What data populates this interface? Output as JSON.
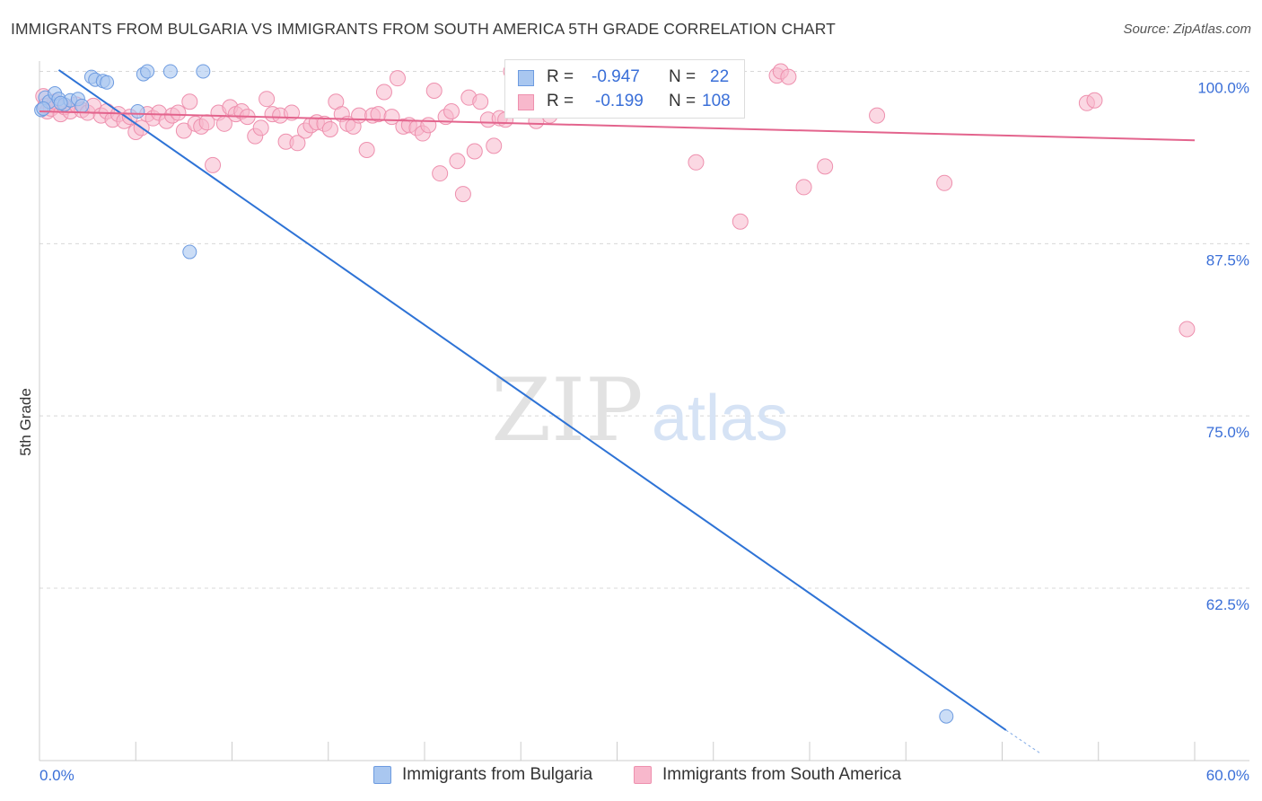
{
  "header": {
    "title": "IMMIGRANTS FROM BULGARIA VS IMMIGRANTS FROM SOUTH AMERICA 5TH GRADE CORRELATION CHART",
    "source": "Source: ZipAtlas.com"
  },
  "watermark": {
    "zip": "ZIP",
    "atlas": "atlas"
  },
  "legend": {
    "rows": [
      {
        "r_label": "R =",
        "r_value": "-0.947",
        "n_label": "N =",
        "n_value": "22"
      },
      {
        "r_label": "R =",
        "r_value": "-0.199",
        "n_label": "N =",
        "n_value": "108"
      }
    ]
  },
  "colors": {
    "bulgaria_fill": "#a9c7f0",
    "bulgaria_stroke": "#6d9be0",
    "bulgaria_line": "#2e73d6",
    "south_america_fill": "#f8b8cc",
    "south_america_stroke": "#ee90ae",
    "south_america_line": "#e3648d",
    "tick_label": "#3a6fd8",
    "grid": "#d8d8d8"
  },
  "chart_data": {
    "type": "scatter",
    "title": "IMMIGRANTS FROM BULGARIA VS IMMIGRANTS FROM SOUTH AMERICA 5TH GRADE CORRELATION CHART",
    "xlabel": "",
    "ylabel": "5th Grade",
    "xlim": [
      0,
      60
    ],
    "ylim": [
      50.5,
      101.2
    ],
    "x_tick_labels": [
      "0.0%",
      "60.0%"
    ],
    "y_ticks": [
      62.5,
      75.0,
      87.5,
      100.0
    ],
    "y_tick_labels": [
      "62.5%",
      "75.0%",
      "87.5%",
      "100.0%"
    ],
    "grid": true,
    "legend_position": "bottom",
    "series": [
      {
        "name": "Immigrants from Bulgaria",
        "R": -0.947,
        "N": 22,
        "trend": {
          "x": [
            1.0,
            50.2
          ],
          "y": [
            100.1,
            52.2
          ],
          "dashed_to": [
            52.0,
            50.5
          ]
        },
        "points": [
          [
            0.1,
            97.2
          ],
          [
            0.3,
            98.1
          ],
          [
            0.5,
            97.8
          ],
          [
            0.8,
            98.4
          ],
          [
            1.0,
            98.0
          ],
          [
            1.3,
            97.6
          ],
          [
            1.6,
            97.9
          ],
          [
            2.0,
            98.0
          ],
          [
            2.2,
            97.5
          ],
          [
            2.7,
            99.6
          ],
          [
            2.9,
            99.4
          ],
          [
            3.3,
            99.3
          ],
          [
            3.5,
            99.2
          ],
          [
            5.1,
            97.1
          ],
          [
            5.4,
            99.8
          ],
          [
            5.6,
            100.0
          ],
          [
            6.8,
            100.0
          ],
          [
            8.5,
            100.0
          ],
          [
            7.8,
            86.9
          ],
          [
            47.1,
            53.2
          ],
          [
            0.2,
            97.3
          ],
          [
            1.1,
            97.7
          ]
        ]
      },
      {
        "name": "Immigrants from South America",
        "R": -0.199,
        "N": 108,
        "trend": {
          "x": [
            0.0,
            60.0
          ],
          "y": [
            97.1,
            95.0
          ]
        },
        "points": [
          [
            0.2,
            98.2
          ],
          [
            0.3,
            97.5
          ],
          [
            0.4,
            97.1
          ],
          [
            0.6,
            97.3
          ],
          [
            0.8,
            97.8
          ],
          [
            1.1,
            96.9
          ],
          [
            1.3,
            97.4
          ],
          [
            1.6,
            97.1
          ],
          [
            1.9,
            97.6
          ],
          [
            2.2,
            97.2
          ],
          [
            2.5,
            97.0
          ],
          [
            2.8,
            97.5
          ],
          [
            3.2,
            96.8
          ],
          [
            3.5,
            97.1
          ],
          [
            3.8,
            96.5
          ],
          [
            4.1,
            96.9
          ],
          [
            4.4,
            96.4
          ],
          [
            4.7,
            96.7
          ],
          [
            5.0,
            95.6
          ],
          [
            5.3,
            95.9
          ],
          [
            5.6,
            96.9
          ],
          [
            5.9,
            96.6
          ],
          [
            6.2,
            97.0
          ],
          [
            6.6,
            96.4
          ],
          [
            6.9,
            96.8
          ],
          [
            7.2,
            97.0
          ],
          [
            7.5,
            95.7
          ],
          [
            7.8,
            97.8
          ],
          [
            8.1,
            96.2
          ],
          [
            8.4,
            96.0
          ],
          [
            8.7,
            96.3
          ],
          [
            9.0,
            93.2
          ],
          [
            9.3,
            97.0
          ],
          [
            9.6,
            96.2
          ],
          [
            9.9,
            97.4
          ],
          [
            10.2,
            96.9
          ],
          [
            10.5,
            97.1
          ],
          [
            10.8,
            96.7
          ],
          [
            11.2,
            95.3
          ],
          [
            11.5,
            95.9
          ],
          [
            11.8,
            98.0
          ],
          [
            12.1,
            96.9
          ],
          [
            12.5,
            96.8
          ],
          [
            12.8,
            94.9
          ],
          [
            13.1,
            97.0
          ],
          [
            13.4,
            94.8
          ],
          [
            13.8,
            95.7
          ],
          [
            14.1,
            96.1
          ],
          [
            14.4,
            96.3
          ],
          [
            14.8,
            96.2
          ],
          [
            15.1,
            95.8
          ],
          [
            15.4,
            97.8
          ],
          [
            15.7,
            96.9
          ],
          [
            16.0,
            96.2
          ],
          [
            16.3,
            96.0
          ],
          [
            16.6,
            96.8
          ],
          [
            17.0,
            94.3
          ],
          [
            17.3,
            96.8
          ],
          [
            17.6,
            96.9
          ],
          [
            17.9,
            98.5
          ],
          [
            18.3,
            96.7
          ],
          [
            18.6,
            99.5
          ],
          [
            18.9,
            96.0
          ],
          [
            19.2,
            96.1
          ],
          [
            19.6,
            95.9
          ],
          [
            19.9,
            95.5
          ],
          [
            20.2,
            96.1
          ],
          [
            20.5,
            98.6
          ],
          [
            20.8,
            92.6
          ],
          [
            21.1,
            96.7
          ],
          [
            21.4,
            97.1
          ],
          [
            21.7,
            93.5
          ],
          [
            22.0,
            91.1
          ],
          [
            22.3,
            98.1
          ],
          [
            22.6,
            94.2
          ],
          [
            22.9,
            97.8
          ],
          [
            23.3,
            96.5
          ],
          [
            23.6,
            94.6
          ],
          [
            23.9,
            96.6
          ],
          [
            24.2,
            96.5
          ],
          [
            24.5,
            100.0
          ],
          [
            25.1,
            99.2
          ],
          [
            25.5,
            97.4
          ],
          [
            25.8,
            96.4
          ],
          [
            26.1,
            97.6
          ],
          [
            26.5,
            96.8
          ],
          [
            27.0,
            99.7
          ],
          [
            27.2,
            100.0
          ],
          [
            27.5,
            99.4
          ],
          [
            28.0,
            98.7
          ],
          [
            28.3,
            99.8
          ],
          [
            30.0,
            100.0
          ],
          [
            31.0,
            99.0
          ],
          [
            32.2,
            99.8
          ],
          [
            32.6,
            98.0
          ],
          [
            33.1,
            99.6
          ],
          [
            34.1,
            93.4
          ],
          [
            36.4,
            89.1
          ],
          [
            38.3,
            99.7
          ],
          [
            38.5,
            100.0
          ],
          [
            38.9,
            99.6
          ],
          [
            39.7,
            91.6
          ],
          [
            40.8,
            93.1
          ],
          [
            43.5,
            96.8
          ],
          [
            47.0,
            91.9
          ],
          [
            54.4,
            97.7
          ],
          [
            54.8,
            97.9
          ],
          [
            59.6,
            81.3
          ]
        ]
      }
    ]
  },
  "bottom_legend": {
    "items": [
      {
        "label": "Immigrants from Bulgaria"
      },
      {
        "label": "Immigrants from South America"
      }
    ]
  }
}
